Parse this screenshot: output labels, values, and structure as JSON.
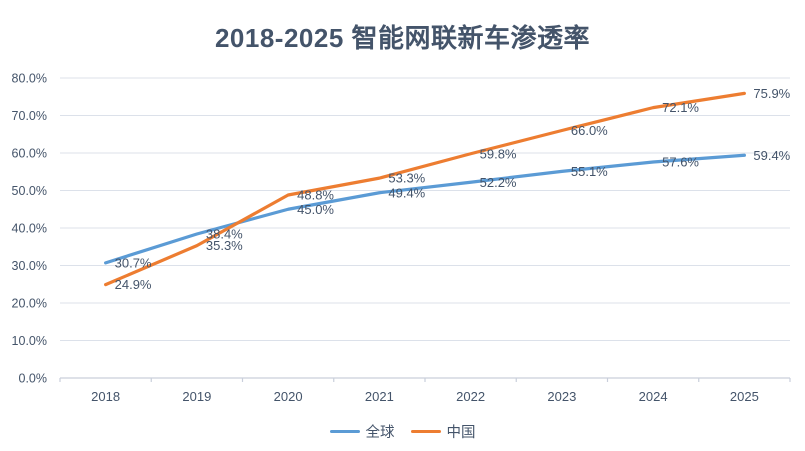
{
  "chart_data": {
    "type": "line",
    "title": "2018-2025 智能网联新车渗透率",
    "categories": [
      "2018",
      "2019",
      "2020",
      "2021",
      "2022",
      "2023",
      "2024",
      "2025"
    ],
    "series": [
      {
        "name": "全球",
        "color": "#5B9BD5",
        "values": [
          30.7,
          38.4,
          45.0,
          49.4,
          52.2,
          55.1,
          57.6,
          59.4
        ]
      },
      {
        "name": "中国",
        "color": "#ED7D31",
        "values": [
          24.9,
          35.3,
          48.8,
          53.3,
          59.8,
          66.0,
          72.1,
          75.9
        ]
      }
    ],
    "xlabel": "",
    "ylabel": "",
    "ylim": [
      0,
      80
    ],
    "ytick_step": 10,
    "ytick_labels": [
      "0.0%",
      "10.0%",
      "20.0%",
      "30.0%",
      "40.0%",
      "50.0%",
      "60.0%",
      "70.0%",
      "80.0%"
    ],
    "value_suffix": "%",
    "data_labels": true,
    "grid": true,
    "legend_position": "bottom"
  },
  "colors": {
    "title_text": "#44546A",
    "axis_text": "#44546A",
    "data_label_text": "#44546A",
    "legend_text": "#44546A",
    "gridline": "#DCE1EA",
    "axis_line": "#C9CFDB",
    "background": "#FFFFFF",
    "series_global": "#5B9BD5",
    "series_china": "#ED7D31"
  }
}
